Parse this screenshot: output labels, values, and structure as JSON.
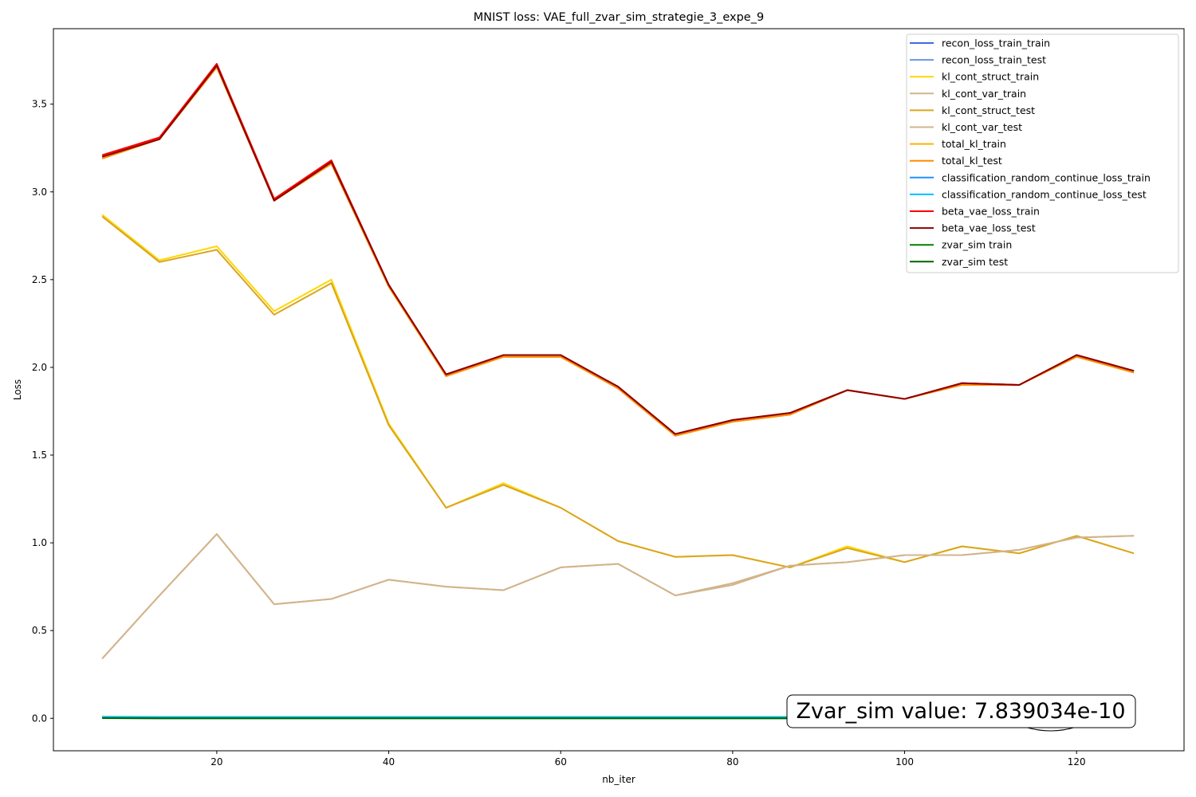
{
  "chart_data": {
    "type": "line",
    "title": "MNIST loss: VAE_full_zvar_sim_strategie_3_expe_9",
    "xlabel": "nb_iter",
    "ylabel": "Loss",
    "xlim": [
      1.0,
      132.5
    ],
    "ylim": [
      -0.185,
      3.93
    ],
    "xticks": [
      20,
      40,
      60,
      80,
      100,
      120
    ],
    "yticks": [
      0.0,
      0.5,
      1.0,
      1.5,
      2.0,
      2.5,
      3.0,
      3.5
    ],
    "xtick_labels": [
      "20",
      "40",
      "60",
      "80",
      "100",
      "120"
    ],
    "ytick_labels": [
      "0.0",
      "0.5",
      "1.0",
      "1.5",
      "2.0",
      "2.5",
      "3.0",
      "3.5"
    ],
    "legend_position": "top-right",
    "x": [
      6.67,
      13.33,
      20.0,
      26.67,
      33.33,
      40.0,
      46.67,
      53.33,
      60.0,
      66.67,
      73.33,
      80.0,
      86.67,
      93.33,
      100.0,
      106.67,
      113.33,
      120.0,
      126.67
    ],
    "series": [
      {
        "name": "recon_loss_train_train",
        "color": "#4169e1",
        "values": [
          0.006,
          0.005,
          0.005,
          0.005,
          0.005,
          0.005,
          0.005,
          0.005,
          0.005,
          0.005,
          0.005,
          0.005,
          0.005,
          0.005,
          0.005,
          0.005,
          0.005,
          0.005,
          0.005
        ]
      },
      {
        "name": "recon_loss_train_test",
        "color": "#6495ed",
        "values": [
          0.007,
          0.006,
          0.006,
          0.006,
          0.006,
          0.006,
          0.006,
          0.006,
          0.006,
          0.006,
          0.006,
          0.006,
          0.006,
          0.006,
          0.006,
          0.006,
          0.006,
          0.006,
          0.006
        ]
      },
      {
        "name": "kl_cont_struct_train",
        "color": "#ffd700",
        "values": [
          2.87,
          2.61,
          2.69,
          2.32,
          2.5,
          1.68,
          1.2,
          1.34,
          1.2,
          1.01,
          0.92,
          0.93,
          0.86,
          0.98,
          0.89,
          0.98,
          0.94,
          1.04,
          0.94
        ]
      },
      {
        "name": "kl_cont_var_train",
        "color": "#d2b48c",
        "values": [
          0.34,
          0.7,
          1.05,
          0.65,
          0.68,
          0.79,
          0.75,
          0.73,
          0.86,
          0.88,
          0.7,
          0.77,
          0.87,
          0.89,
          0.93,
          0.93,
          0.96,
          1.03,
          1.04
        ]
      },
      {
        "name": "kl_cont_struct_test",
        "color": "#daa520",
        "values": [
          2.86,
          2.6,
          2.67,
          2.3,
          2.48,
          1.67,
          1.2,
          1.33,
          1.2,
          1.01,
          0.92,
          0.93,
          0.86,
          0.97,
          0.89,
          0.98,
          0.94,
          1.04,
          0.94
        ]
      },
      {
        "name": "kl_cont_var_test",
        "color": "#d2b48c",
        "values": [
          0.34,
          0.7,
          1.05,
          0.65,
          0.68,
          0.79,
          0.75,
          0.73,
          0.86,
          0.88,
          0.7,
          0.76,
          0.87,
          0.89,
          0.93,
          0.93,
          0.96,
          1.03,
          1.04
        ]
      },
      {
        "name": "total_kl_train",
        "color": "#ffb000",
        "values": [
          3.2,
          3.31,
          3.72,
          2.96,
          3.17,
          2.47,
          1.95,
          2.06,
          2.06,
          1.89,
          1.62,
          1.69,
          1.74,
          1.87,
          1.82,
          1.91,
          1.9,
          2.07,
          1.98
        ]
      },
      {
        "name": "total_kl_test",
        "color": "#ff8c00",
        "values": [
          3.19,
          3.3,
          3.71,
          2.95,
          3.16,
          2.46,
          1.95,
          2.06,
          2.06,
          1.88,
          1.61,
          1.69,
          1.73,
          1.87,
          1.82,
          1.9,
          1.9,
          2.06,
          1.97
        ]
      },
      {
        "name": "classification_random_continue_loss_train",
        "color": "#1e90ff",
        "values": [
          0.008,
          0.007,
          0.007,
          0.007,
          0.007,
          0.007,
          0.007,
          0.007,
          0.007,
          0.007,
          0.007,
          0.007,
          0.007,
          0.007,
          0.007,
          0.007,
          0.007,
          0.007,
          0.007
        ]
      },
      {
        "name": "classification_random_continue_loss_test",
        "color": "#00bfff",
        "values": [
          0.009,
          0.008,
          0.008,
          0.008,
          0.008,
          0.008,
          0.008,
          0.008,
          0.008,
          0.008,
          0.008,
          0.008,
          0.008,
          0.008,
          0.008,
          0.008,
          0.008,
          0.008,
          0.008
        ]
      },
      {
        "name": "beta_vae_loss_train",
        "color": "#ff0000",
        "values": [
          3.21,
          3.31,
          3.73,
          2.96,
          3.18,
          2.47,
          1.96,
          2.07,
          2.07,
          1.89,
          1.62,
          1.7,
          1.74,
          1.87,
          1.82,
          1.91,
          1.9,
          2.07,
          1.98
        ]
      },
      {
        "name": "beta_vae_loss_test",
        "color": "#8b0000",
        "values": [
          3.2,
          3.3,
          3.72,
          2.95,
          3.17,
          2.47,
          1.96,
          2.07,
          2.07,
          1.89,
          1.62,
          1.7,
          1.74,
          1.87,
          1.82,
          1.91,
          1.9,
          2.07,
          1.98
        ]
      },
      {
        "name": "zvar_sim train",
        "color": "#008000",
        "values": [
          0.001,
          0.0,
          0.0,
          0.0,
          0.0,
          0.0,
          0.0,
          0.0,
          0.0,
          0.0,
          0.0,
          0.0,
          0.0,
          0.0,
          0.0,
          0.0,
          0.0,
          0.0,
          0.0
        ]
      },
      {
        "name": "zvar_sim test",
        "color": "#006400",
        "values": [
          0.001,
          0.0,
          0.0,
          0.0,
          0.0,
          0.0,
          0.0,
          0.0,
          0.0,
          0.0,
          0.0,
          0.0,
          0.0,
          0.0,
          0.0,
          0.0,
          0.0,
          0.0,
          0.0
        ]
      }
    ],
    "annotation": {
      "text": "Zvar_sim value: 7.839034e-10",
      "position": "bottom-right"
    }
  }
}
